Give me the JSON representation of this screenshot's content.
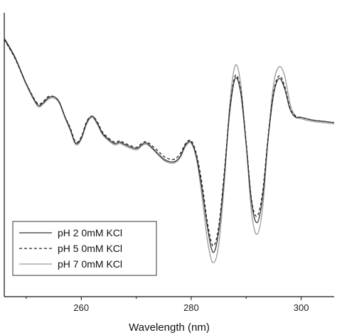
{
  "chart_data": {
    "type": "line",
    "title": "",
    "xlabel": "Wavelength (nm)",
    "ylabel": "",
    "xlim": [
      246,
      306
    ],
    "ylim": [
      -1.0,
      1.0
    ],
    "x_ticks": [
      260,
      280,
      300
    ],
    "x_tick_labels": [
      "260",
      "280",
      "300"
    ],
    "minor_x_ticks": [
      250,
      270,
      290
    ],
    "y_axis_ticks_shown": false,
    "legend": {
      "placement": "bottom-left"
    },
    "series": [
      {
        "name": "pH 2 0mM KCl",
        "style": "solid",
        "color": "#333333",
        "points": [
          [
            246,
            0.87
          ],
          [
            248,
            0.72
          ],
          [
            250,
            0.52
          ],
          [
            252,
            0.36
          ],
          [
            253,
            0.37
          ],
          [
            254,
            0.41
          ],
          [
            255,
            0.42
          ],
          [
            256,
            0.38
          ],
          [
            257,
            0.27
          ],
          [
            258,
            0.17
          ],
          [
            259,
            0.06
          ],
          [
            260,
            0.1
          ],
          [
            261,
            0.22
          ],
          [
            262,
            0.27
          ],
          [
            263,
            0.21
          ],
          [
            264,
            0.13
          ],
          [
            266,
            0.06
          ],
          [
            267,
            0.07
          ],
          [
            268,
            0.05
          ],
          [
            270,
            0.02
          ],
          [
            271,
            0.05
          ],
          [
            272,
            0.06
          ],
          [
            274,
            -0.02
          ],
          [
            275,
            -0.06
          ],
          [
            276,
            -0.08
          ],
          [
            277,
            -0.08
          ],
          [
            278,
            -0.04
          ],
          [
            279,
            0.05
          ],
          [
            280,
            0.07
          ],
          [
            281,
            -0.05
          ],
          [
            282,
            -0.3
          ],
          [
            283,
            -0.6
          ],
          [
            284,
            -0.78
          ],
          [
            285,
            -0.62
          ],
          [
            286,
            -0.2
          ],
          [
            287,
            0.3
          ],
          [
            288,
            0.56
          ],
          [
            289,
            0.45
          ],
          [
            290,
            0.05
          ],
          [
            291,
            -0.4
          ],
          [
            292,
            -0.55
          ],
          [
            293,
            -0.35
          ],
          [
            294,
            0.1
          ],
          [
            295,
            0.44
          ],
          [
            296,
            0.56
          ],
          [
            297,
            0.48
          ],
          [
            298,
            0.32
          ],
          [
            299,
            0.26
          ],
          [
            300,
            0.26
          ],
          [
            302,
            0.24
          ],
          [
            304,
            0.23
          ],
          [
            306,
            0.22
          ]
        ]
      },
      {
        "name": "pH 5 0mM KCl",
        "style": "dashed",
        "color": "#222222",
        "points": [
          [
            246,
            0.86
          ],
          [
            248,
            0.71
          ],
          [
            250,
            0.52
          ],
          [
            252,
            0.37
          ],
          [
            253,
            0.38
          ],
          [
            254,
            0.42
          ],
          [
            255,
            0.42
          ],
          [
            256,
            0.38
          ],
          [
            257,
            0.27
          ],
          [
            258,
            0.18
          ],
          [
            259,
            0.07
          ],
          [
            260,
            0.11
          ],
          [
            261,
            0.23
          ],
          [
            262,
            0.27
          ],
          [
            263,
            0.22
          ],
          [
            264,
            0.14
          ],
          [
            266,
            0.07
          ],
          [
            267,
            0.08
          ],
          [
            268,
            0.06
          ],
          [
            270,
            0.03
          ],
          [
            271,
            0.06
          ],
          [
            272,
            0.07
          ],
          [
            274,
            0.0
          ],
          [
            275,
            -0.04
          ],
          [
            276,
            -0.06
          ],
          [
            277,
            -0.06
          ],
          [
            278,
            -0.02
          ],
          [
            279,
            0.06
          ],
          [
            280,
            0.08
          ],
          [
            281,
            -0.03
          ],
          [
            282,
            -0.26
          ],
          [
            283,
            -0.56
          ],
          [
            284,
            -0.73
          ],
          [
            285,
            -0.58
          ],
          [
            286,
            -0.17
          ],
          [
            287,
            0.32
          ],
          [
            288,
            0.58
          ],
          [
            289,
            0.47
          ],
          [
            290,
            0.07
          ],
          [
            291,
            -0.38
          ],
          [
            292,
            -0.5
          ],
          [
            293,
            -0.31
          ],
          [
            294,
            0.12
          ],
          [
            295,
            0.46
          ],
          [
            296,
            0.58
          ],
          [
            297,
            0.5
          ],
          [
            298,
            0.33
          ],
          [
            299,
            0.27
          ],
          [
            300,
            0.26
          ],
          [
            302,
            0.24
          ],
          [
            304,
            0.23
          ],
          [
            306,
            0.22
          ]
        ]
      },
      {
        "name": "pH 7 0mM KCl",
        "style": "solid",
        "color": "#999999",
        "points": [
          [
            246,
            0.86
          ],
          [
            248,
            0.71
          ],
          [
            250,
            0.51
          ],
          [
            252,
            0.35
          ],
          [
            253,
            0.36
          ],
          [
            254,
            0.4
          ],
          [
            255,
            0.41
          ],
          [
            256,
            0.37
          ],
          [
            257,
            0.26
          ],
          [
            258,
            0.16
          ],
          [
            259,
            0.05
          ],
          [
            260,
            0.09
          ],
          [
            261,
            0.21
          ],
          [
            262,
            0.26
          ],
          [
            263,
            0.2
          ],
          [
            264,
            0.12
          ],
          [
            266,
            0.05
          ],
          [
            267,
            0.06
          ],
          [
            268,
            0.04
          ],
          [
            270,
            0.01
          ],
          [
            271,
            0.04
          ],
          [
            272,
            0.05
          ],
          [
            274,
            -0.03
          ],
          [
            275,
            -0.07
          ],
          [
            276,
            -0.09
          ],
          [
            277,
            -0.09
          ],
          [
            278,
            -0.05
          ],
          [
            279,
            0.04
          ],
          [
            280,
            0.06
          ],
          [
            281,
            -0.07
          ],
          [
            282,
            -0.36
          ],
          [
            283,
            -0.7
          ],
          [
            284,
            -0.86
          ],
          [
            285,
            -0.72
          ],
          [
            286,
            -0.26
          ],
          [
            287,
            0.35
          ],
          [
            288,
            0.66
          ],
          [
            289,
            0.52
          ],
          [
            290,
            0.05
          ],
          [
            291,
            -0.48
          ],
          [
            292,
            -0.64
          ],
          [
            293,
            -0.43
          ],
          [
            294,
            0.1
          ],
          [
            295,
            0.52
          ],
          [
            296,
            0.65
          ],
          [
            297,
            0.58
          ],
          [
            298,
            0.36
          ],
          [
            299,
            0.27
          ],
          [
            300,
            0.25
          ],
          [
            302,
            0.23
          ],
          [
            304,
            0.22
          ],
          [
            306,
            0.21
          ]
        ]
      }
    ]
  }
}
